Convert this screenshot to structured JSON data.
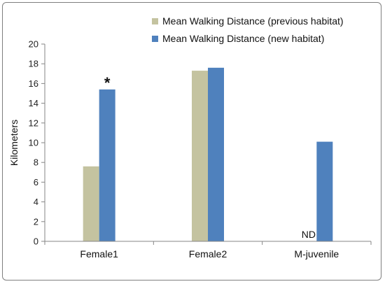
{
  "chart_data": {
    "type": "bar",
    "categories": [
      "Female1",
      "Female2",
      "M-juvenile"
    ],
    "series": [
      {
        "name": "Mean Walking Distance (previous habitat)",
        "color": "#c4c3a0",
        "values": [
          7.6,
          17.3,
          null
        ]
      },
      {
        "name": "Mean Walking Distance (new habitat)",
        "color": "#4f81bd",
        "values": [
          15.4,
          17.6,
          10.1
        ]
      }
    ],
    "ylabel": "Kilometers",
    "ylim": [
      0,
      20
    ],
    "yticks": [
      0,
      2,
      4,
      6,
      8,
      10,
      12,
      14,
      16,
      18,
      20
    ],
    "legend_position": "top-right",
    "annotations": [
      {
        "text": "*",
        "category": "Female1",
        "series": 1
      },
      {
        "text": "ND",
        "category": "M-juvenile",
        "series": 0
      }
    ]
  }
}
